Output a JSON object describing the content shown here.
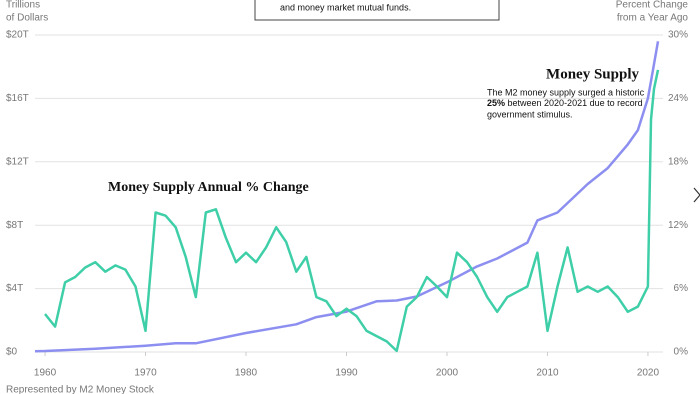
{
  "chart_data": {
    "type": "line",
    "header_note": "and money market mutual funds.",
    "y_axis_label": [
      "Trillions",
      "of Dollars"
    ],
    "y2_axis_label": [
      "Percent Change",
      "from a Year Ago"
    ],
    "footer": "Represented by M2 Money Stock",
    "annotation": [
      "The M2 money supply surged a historic",
      "25%",
      " between 2020-2021 due to record",
      "government stimulus."
    ],
    "xlim": [
      1959,
      2021.2
    ],
    "xticks": [
      1960,
      1970,
      1980,
      1990,
      2000,
      2010,
      2020
    ],
    "ylim": [
      0,
      20
    ],
    "yticks": [
      {
        "value": 0,
        "label": "$0"
      },
      {
        "value": 4,
        "label": "$4T"
      },
      {
        "value": 8,
        "label": "$8T"
      },
      {
        "value": 12,
        "label": "$12T"
      },
      {
        "value": 16,
        "label": "$16T"
      },
      {
        "value": 20,
        "label": "$20T"
      }
    ],
    "y2lim": [
      0,
      30
    ],
    "y2ticks": [
      {
        "value": 0,
        "label": "0%"
      },
      {
        "value": 6,
        "label": "6%"
      },
      {
        "value": 12,
        "label": "12%"
      },
      {
        "value": 18,
        "label": "18%"
      },
      {
        "value": 24,
        "label": "24%"
      },
      {
        "value": 30,
        "label": "30%"
      }
    ],
    "grid": true,
    "series": [
      {
        "name": "Money Supply",
        "color": "#8c8ff0",
        "axis": "y",
        "x": [
          1959,
          1960,
          1965,
          1970,
          1973,
          1975,
          1980,
          1985,
          1987,
          1990,
          1993,
          1995,
          1997,
          2000,
          2003,
          2005,
          2008,
          2009,
          2011,
          2012,
          2014,
          2016,
          2018,
          2019,
          2020,
          2020.5,
          2021
        ],
        "values": [
          0.05,
          0.06,
          0.2,
          0.4,
          0.55,
          0.55,
          1.2,
          1.75,
          2.2,
          2.55,
          3.2,
          3.25,
          3.5,
          4.4,
          5.4,
          5.9,
          6.9,
          8.3,
          8.8,
          9.4,
          10.6,
          11.6,
          13.1,
          14.0,
          16.0,
          17.8,
          19.6
        ]
      },
      {
        "name": "Money Supply Annual % Change",
        "color": "#3fcfa8",
        "axis": "y2",
        "x": [
          1960,
          1961,
          1962,
          1963,
          1964,
          1965,
          1966,
          1967,
          1968,
          1969,
          1970,
          1971,
          1972,
          1973,
          1974,
          1975,
          1976,
          1977,
          1978,
          1979,
          1980,
          1981,
          1982,
          1983,
          1984,
          1985,
          1986,
          1987,
          1988,
          1989,
          1990,
          1991,
          1992,
          1993,
          1994,
          1995,
          1996,
          1997,
          1998,
          1999,
          2000,
          2001,
          2002,
          2003,
          2004,
          2005,
          2006,
          2007,
          2008,
          2009,
          2010,
          2011,
          2012,
          2013,
          2014,
          2015,
          2016,
          2017,
          2018,
          2019,
          2020,
          2020.3,
          2020.6,
          2021
        ],
        "values": [
          3.6,
          2.4,
          6.6,
          7.1,
          8.0,
          8.5,
          7.6,
          8.2,
          7.8,
          6.2,
          2.0,
          13.2,
          12.9,
          11.8,
          9.0,
          5.2,
          13.2,
          13.5,
          10.8,
          8.5,
          9.4,
          8.5,
          9.9,
          11.8,
          10.4,
          7.6,
          9.0,
          5.2,
          4.8,
          3.4,
          4.1,
          3.4,
          2.0,
          1.5,
          1.0,
          0.1,
          4.3,
          5.2,
          7.1,
          6.2,
          5.2,
          9.4,
          8.5,
          7.1,
          5.2,
          3.8,
          5.2,
          5.7,
          6.2,
          9.4,
          2.0,
          6.2,
          9.9,
          5.7,
          6.2,
          5.7,
          6.2,
          5.2,
          3.8,
          4.3,
          6.2,
          22.0,
          24.9,
          26.7
        ]
      }
    ]
  }
}
